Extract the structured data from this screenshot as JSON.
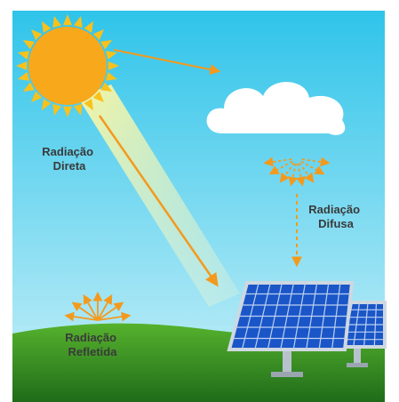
{
  "labels": [
    {
      "lines": [
        "Radiação",
        "Direta"
      ]
    },
    {
      "lines": [
        "Radiação",
        "Difusa"
      ]
    },
    {
      "lines": [
        "Radiação",
        "Refletida"
      ]
    }
  ]
}
